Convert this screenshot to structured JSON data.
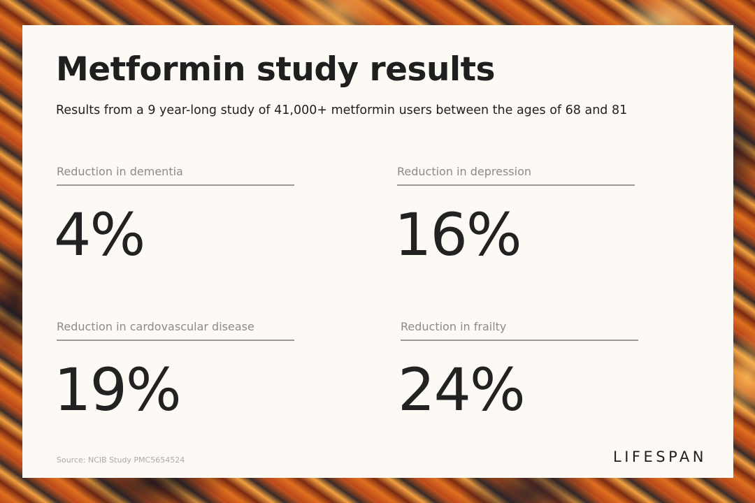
{
  "title": "Metformin study results",
  "subtitle": "Results from a 9 year-long study of 41,000+ metformin users between the ages of 68 and 81",
  "stats": [
    {
      "label": "Reduction in dementia",
      "value": "4%"
    },
    {
      "label": "Reduction in depression",
      "value": "16%"
    },
    {
      "label": "Reduction in cardovascular disease",
      "value": "19%"
    },
    {
      "label": "Reduction in frailty",
      "value": "24%"
    }
  ],
  "source": "Source: NCIB Study PMC5654524",
  "brand": "LIFESPAN",
  "colors": {
    "card_background": "#fdfaf5",
    "text_dark": "#1f1f1f",
    "label_gray": "#8b8b8b",
    "rule_gray": "#9a9a9a",
    "background_orange": "#c0521c"
  }
}
